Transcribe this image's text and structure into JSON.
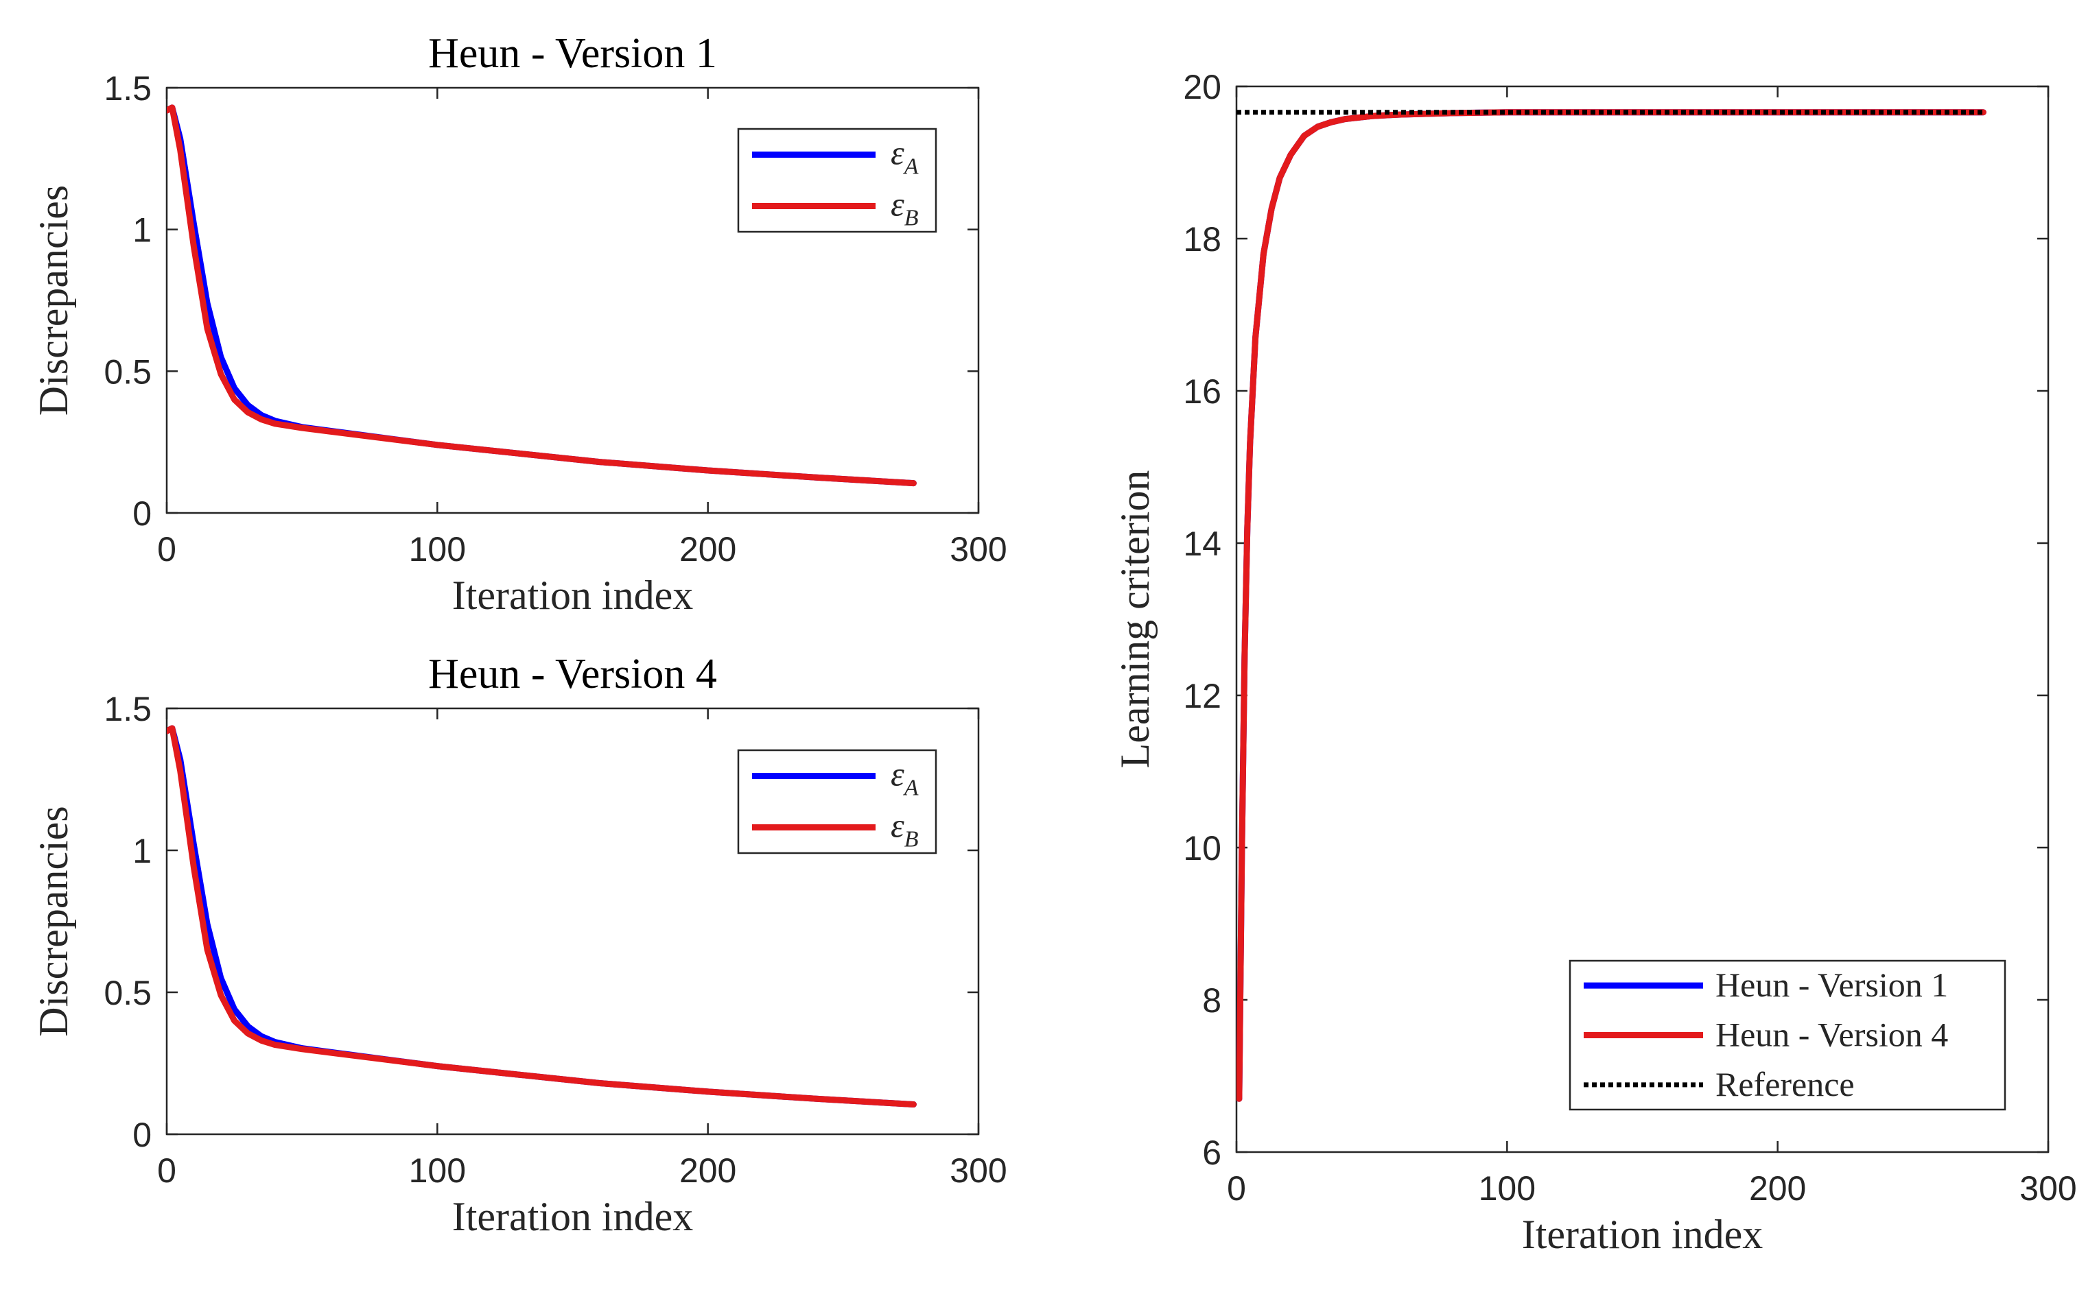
{
  "colors": {
    "series_a": "#0000ff",
    "series_b": "#e31a1c",
    "reference": "#000000",
    "axes": "#262626"
  },
  "chart_data": [
    {
      "id": "top-left",
      "type": "line",
      "title": "Heun - Version 1",
      "xlabel": "Iteration index",
      "ylabel": "Discrepancies",
      "xlim": [
        0,
        300
      ],
      "ylim": [
        0,
        1.5
      ],
      "xticks": [
        "0",
        "100",
        "200",
        "300"
      ],
      "yticks": [
        "0",
        "0.5",
        "1",
        "1.5"
      ],
      "legend_position": "top-right",
      "series": [
        {
          "name": "ε_A",
          "symbol": "ε",
          "subscript": "A",
          "color": "blue",
          "x": [
            0,
            2,
            5,
            10,
            15,
            20,
            25,
            30,
            35,
            40,
            50,
            60,
            80,
            100,
            130,
            160,
            200,
            240,
            276
          ],
          "y": [
            1.42,
            1.43,
            1.32,
            1.02,
            0.74,
            0.55,
            0.44,
            0.38,
            0.345,
            0.325,
            0.303,
            0.29,
            0.265,
            0.24,
            0.21,
            0.18,
            0.15,
            0.125,
            0.105
          ]
        },
        {
          "name": "ε_B",
          "symbol": "ε",
          "subscript": "B",
          "color": "red",
          "x": [
            0,
            2,
            5,
            10,
            15,
            20,
            25,
            30,
            35,
            40,
            50,
            60,
            80,
            100,
            130,
            160,
            200,
            240,
            276
          ],
          "y": [
            1.42,
            1.43,
            1.28,
            0.94,
            0.65,
            0.49,
            0.4,
            0.355,
            0.33,
            0.315,
            0.3,
            0.288,
            0.264,
            0.24,
            0.21,
            0.18,
            0.15,
            0.125,
            0.105
          ]
        }
      ]
    },
    {
      "id": "bottom-left",
      "type": "line",
      "title": "Heun - Version 4",
      "xlabel": "Iteration index",
      "ylabel": "Discrepancies",
      "xlim": [
        0,
        300
      ],
      "ylim": [
        0,
        1.5
      ],
      "xticks": [
        "0",
        "100",
        "200",
        "300"
      ],
      "yticks": [
        "0",
        "0.5",
        "1",
        "1.5"
      ],
      "legend_position": "top-right",
      "series": [
        {
          "name": "ε_A",
          "symbol": "ε",
          "subscript": "A",
          "color": "blue",
          "x": [
            0,
            2,
            5,
            10,
            15,
            20,
            25,
            30,
            35,
            40,
            50,
            60,
            80,
            100,
            130,
            160,
            200,
            240,
            276
          ],
          "y": [
            1.42,
            1.43,
            1.32,
            1.02,
            0.74,
            0.55,
            0.44,
            0.38,
            0.345,
            0.325,
            0.303,
            0.29,
            0.265,
            0.24,
            0.21,
            0.18,
            0.15,
            0.125,
            0.105
          ]
        },
        {
          "name": "ε_B",
          "symbol": "ε",
          "subscript": "B",
          "color": "red",
          "x": [
            0,
            2,
            5,
            10,
            15,
            20,
            25,
            30,
            35,
            40,
            50,
            60,
            80,
            100,
            130,
            160,
            200,
            240,
            276
          ],
          "y": [
            1.42,
            1.43,
            1.28,
            0.94,
            0.65,
            0.49,
            0.4,
            0.355,
            0.33,
            0.315,
            0.3,
            0.288,
            0.264,
            0.24,
            0.21,
            0.18,
            0.15,
            0.125,
            0.105
          ]
        }
      ]
    },
    {
      "id": "right",
      "type": "line",
      "title": "",
      "xlabel": "Iteration index",
      "ylabel": "Learning criterion",
      "xlim": [
        0,
        300
      ],
      "ylim": [
        6,
        20
      ],
      "xticks": [
        "0",
        "100",
        "200",
        "300"
      ],
      "yticks": [
        "6",
        "8",
        "10",
        "12",
        "14",
        "16",
        "18",
        "20"
      ],
      "legend_position": "bottom-right",
      "series": [
        {
          "name": "Heun - Version 1",
          "color": "blue",
          "style": "solid",
          "x": [
            1,
            2,
            3,
            4,
            5,
            7,
            10,
            13,
            16,
            20,
            25,
            30,
            35,
            40,
            50,
            60,
            80,
            100,
            150,
            200,
            240,
            276
          ],
          "y": [
            6.7,
            10.0,
            12.5,
            14.2,
            15.3,
            16.7,
            17.8,
            18.4,
            18.8,
            19.1,
            19.35,
            19.47,
            19.53,
            19.57,
            19.61,
            19.63,
            19.65,
            19.66,
            19.66,
            19.66,
            19.66,
            19.66
          ]
        },
        {
          "name": "Heun - Version 4",
          "color": "red",
          "style": "solid",
          "x": [
            1,
            2,
            3,
            4,
            5,
            7,
            10,
            13,
            16,
            20,
            25,
            30,
            35,
            40,
            50,
            60,
            80,
            100,
            150,
            200,
            240,
            276
          ],
          "y": [
            6.7,
            10.0,
            12.5,
            14.2,
            15.3,
            16.7,
            17.8,
            18.4,
            18.8,
            19.1,
            19.35,
            19.47,
            19.53,
            19.57,
            19.61,
            19.63,
            19.65,
            19.66,
            19.66,
            19.66,
            19.66,
            19.66
          ]
        },
        {
          "name": "Reference",
          "color": "black",
          "style": "dotted",
          "x": [
            0,
            276
          ],
          "y": [
            19.66,
            19.66
          ]
        }
      ]
    }
  ]
}
